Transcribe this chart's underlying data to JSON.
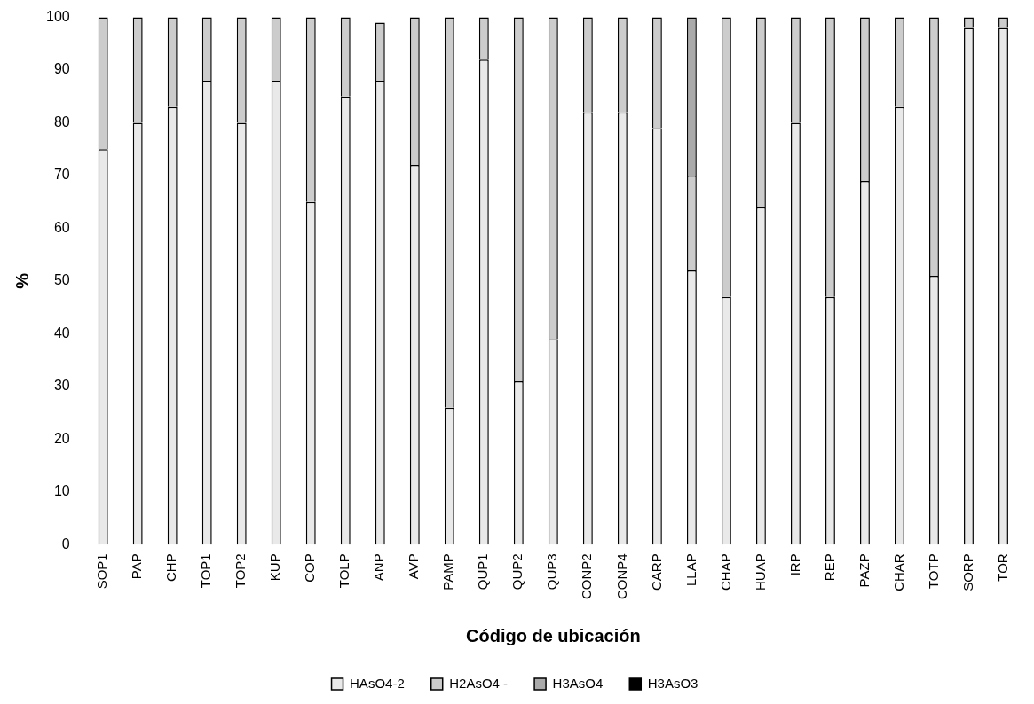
{
  "chart_data": {
    "type": "bar",
    "stacked": true,
    "xlabel": "Código de ubicación",
    "ylabel": "%",
    "categories": [
      "SOP1",
      "PAP",
      "CHP",
      "TOP1",
      "TOP2",
      "KUP",
      "COP",
      "TOLP",
      "ANP",
      "AVP",
      "PAMP",
      "QUP1",
      "QUP2",
      "QUP3",
      "CONP2",
      "CONP4",
      "CARP",
      "LLAP",
      "CHAP",
      "HUAP",
      "IRP",
      "REP",
      "PAZP",
      "CHAR",
      "TOTP",
      "SORP",
      "TOR"
    ],
    "series": [
      {
        "name": "HAsO4-2",
        "color": "#e9e9e9",
        "values": [
          75,
          80,
          83,
          88,
          80,
          88,
          65,
          85,
          88,
          72,
          26,
          92,
          31,
          39,
          82,
          82,
          79,
          52,
          47,
          64,
          80,
          47,
          69,
          83,
          51,
          98,
          98
        ]
      },
      {
        "name": "H2AsO4 -",
        "color": "#cccccc",
        "values": [
          25,
          20,
          17,
          12,
          20,
          12,
          35,
          15,
          11,
          28,
          74,
          8,
          69,
          61,
          18,
          18,
          21,
          18,
          53,
          36,
          20,
          53,
          31,
          17,
          49,
          2,
          2
        ]
      },
      {
        "name": "H3AsO4",
        "color": "#aaaaaa",
        "values": [
          0,
          0,
          0,
          0,
          0,
          0,
          0,
          0,
          0,
          0,
          0,
          0,
          0,
          0,
          0,
          0,
          0,
          30,
          0,
          0,
          0,
          0,
          0,
          0,
          0,
          0,
          0
        ]
      },
      {
        "name": "H3AsO3",
        "color": "#000000",
        "values": [
          0,
          0,
          0,
          0,
          0,
          0,
          0,
          0,
          0,
          0,
          0,
          0,
          0,
          0,
          0,
          0,
          0,
          0,
          0,
          0,
          0,
          0,
          0,
          0,
          0,
          0,
          0
        ]
      }
    ],
    "ylim": [
      0,
      100
    ],
    "yticks": [
      0,
      10,
      20,
      30,
      40,
      50,
      60,
      70,
      80,
      90,
      100
    ],
    "grid": false,
    "legend": "bottom"
  }
}
